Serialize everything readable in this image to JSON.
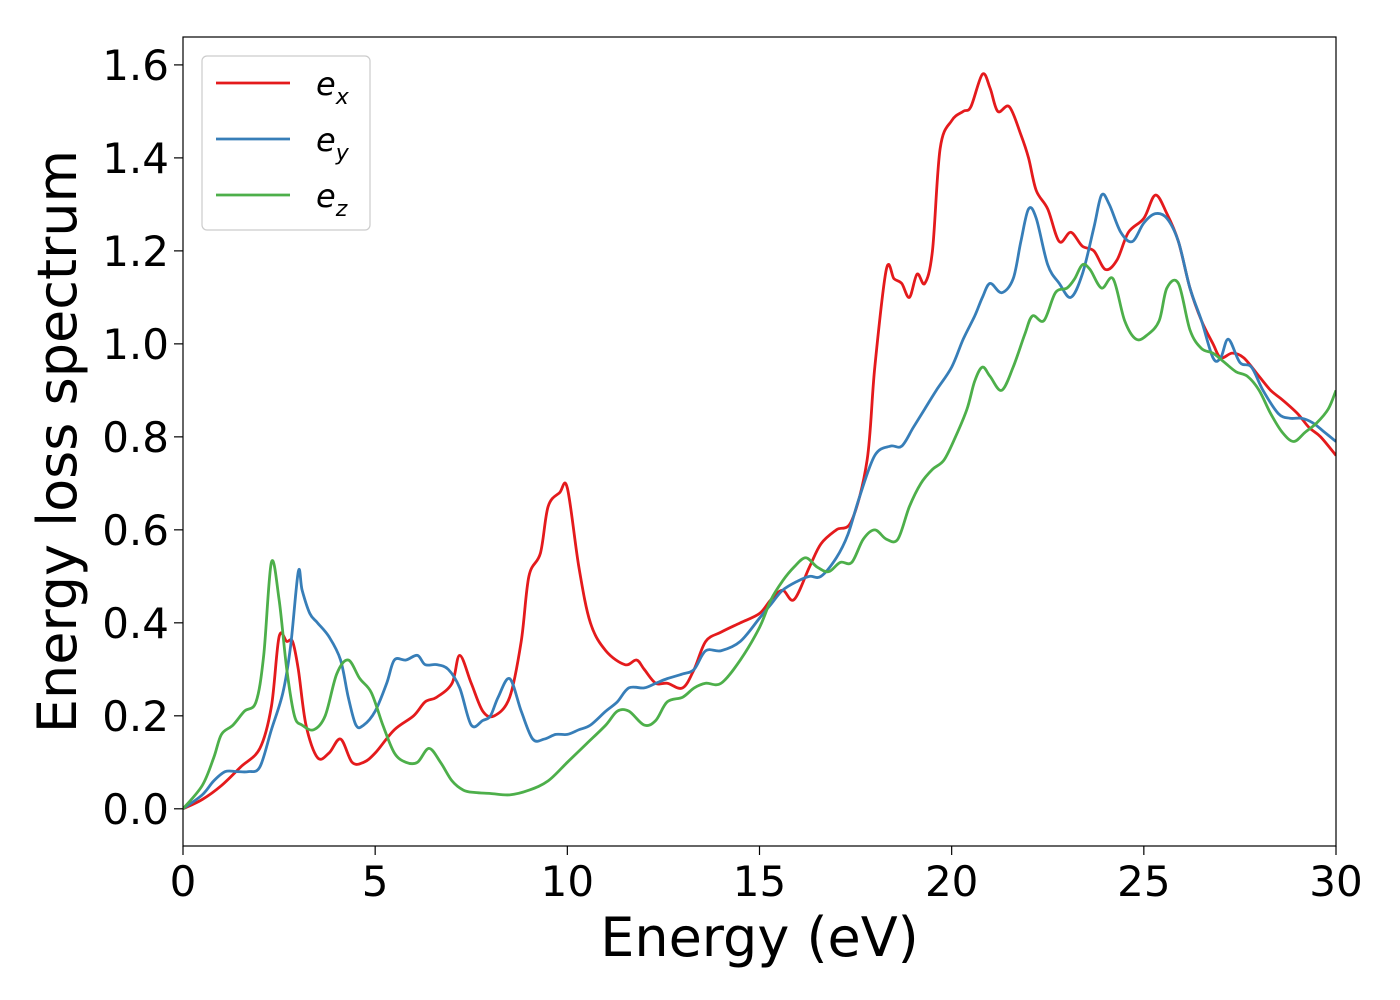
{
  "chart_data": {
    "type": "line",
    "xlabel": "Energy (eV)",
    "ylabel": "Energy loss spectrum",
    "xlim": [
      0,
      30
    ],
    "ylim": [
      -0.08,
      1.66
    ],
    "xticks": [
      0,
      5,
      10,
      15,
      20,
      25,
      30
    ],
    "xtick_labels": [
      "0",
      "5",
      "10",
      "15",
      "20",
      "25",
      "30"
    ],
    "yticks": [
      0.0,
      0.2,
      0.4,
      0.6,
      0.8,
      1.0,
      1.2,
      1.4,
      1.6
    ],
    "ytick_labels": [
      "0.0",
      "0.2",
      "0.4",
      "0.6",
      "0.8",
      "1.0",
      "1.2",
      "1.4",
      "1.6"
    ],
    "grid": false,
    "legend_position": "top-left",
    "series": [
      {
        "name": "e_x",
        "legend_base": "e",
        "legend_sub": "x",
        "color": "#e41a1c",
        "x": [
          0,
          0.5,
          1.0,
          1.5,
          2.0,
          2.3,
          2.5,
          2.7,
          2.85,
          3.0,
          3.2,
          3.5,
          3.8,
          4.1,
          4.4,
          4.7,
          5.0,
          5.5,
          6.0,
          6.3,
          6.6,
          7.0,
          7.2,
          7.5,
          7.8,
          8.1,
          8.5,
          8.8,
          9.0,
          9.3,
          9.5,
          9.8,
          10.0,
          10.3,
          10.6,
          11.0,
          11.5,
          11.8,
          12.0,
          12.3,
          12.6,
          13.0,
          13.3,
          13.6,
          14.0,
          14.5,
          15.0,
          15.3,
          15.6,
          15.9,
          16.3,
          16.6,
          17.0,
          17.4,
          17.8,
          18.0,
          18.3,
          18.5,
          18.7,
          18.9,
          19.1,
          19.3,
          19.5,
          19.7,
          20.0,
          20.3,
          20.5,
          20.8,
          21.0,
          21.2,
          21.5,
          21.8,
          22.0,
          22.2,
          22.5,
          22.8,
          23.1,
          23.4,
          23.7,
          24.0,
          24.3,
          24.6,
          25.0,
          25.3,
          25.6,
          25.9,
          26.2,
          26.5,
          26.8,
          27.0,
          27.3,
          27.6,
          28.0,
          28.3,
          28.6,
          29.0,
          29.3,
          29.6,
          30.0
        ],
        "y": [
          0.0,
          0.02,
          0.05,
          0.09,
          0.13,
          0.22,
          0.37,
          0.36,
          0.36,
          0.3,
          0.18,
          0.11,
          0.12,
          0.15,
          0.1,
          0.1,
          0.12,
          0.17,
          0.2,
          0.23,
          0.24,
          0.27,
          0.33,
          0.27,
          0.21,
          0.2,
          0.24,
          0.36,
          0.5,
          0.55,
          0.65,
          0.68,
          0.69,
          0.52,
          0.4,
          0.34,
          0.31,
          0.32,
          0.3,
          0.27,
          0.27,
          0.26,
          0.3,
          0.36,
          0.38,
          0.4,
          0.42,
          0.45,
          0.47,
          0.45,
          0.52,
          0.57,
          0.6,
          0.62,
          0.75,
          0.95,
          1.16,
          1.14,
          1.13,
          1.1,
          1.15,
          1.13,
          1.2,
          1.42,
          1.48,
          1.5,
          1.51,
          1.58,
          1.55,
          1.5,
          1.51,
          1.45,
          1.4,
          1.33,
          1.29,
          1.22,
          1.24,
          1.21,
          1.2,
          1.16,
          1.18,
          1.24,
          1.27,
          1.32,
          1.28,
          1.22,
          1.12,
          1.05,
          1.0,
          0.97,
          0.98,
          0.97,
          0.93,
          0.9,
          0.88,
          0.85,
          0.82,
          0.8,
          0.76
        ]
      },
      {
        "name": "e_y",
        "legend_base": "e",
        "legend_sub": "y",
        "color": "#377eb8",
        "x": [
          0,
          0.5,
          0.8,
          1.1,
          1.4,
          1.7,
          2.0,
          2.3,
          2.6,
          2.8,
          3.0,
          3.1,
          3.3,
          3.5,
          3.8,
          4.1,
          4.3,
          4.5,
          4.7,
          5.0,
          5.3,
          5.5,
          5.8,
          6.1,
          6.3,
          6.6,
          6.9,
          7.2,
          7.5,
          7.8,
          8.0,
          8.2,
          8.5,
          8.8,
          9.1,
          9.4,
          9.7,
          10.0,
          10.3,
          10.6,
          11.0,
          11.3,
          11.6,
          12.0,
          12.3,
          12.6,
          13.0,
          13.3,
          13.6,
          14.0,
          14.5,
          15.0,
          15.3,
          15.6,
          16.0,
          16.3,
          16.6,
          17.0,
          17.3,
          17.6,
          18.0,
          18.4,
          18.7,
          19.0,
          19.3,
          19.6,
          20.0,
          20.3,
          20.6,
          20.8,
          21.0,
          21.3,
          21.6,
          21.8,
          22.0,
          22.2,
          22.5,
          22.8,
          23.1,
          23.4,
          23.7,
          23.9,
          24.1,
          24.4,
          24.7,
          25.0,
          25.3,
          25.6,
          25.9,
          26.2,
          26.5,
          26.8,
          27.0,
          27.2,
          27.5,
          27.8,
          28.1,
          28.5,
          28.8,
          29.1,
          29.4,
          29.7,
          30.0
        ],
        "y": [
          0.0,
          0.03,
          0.06,
          0.08,
          0.08,
          0.08,
          0.09,
          0.17,
          0.25,
          0.35,
          0.51,
          0.47,
          0.42,
          0.4,
          0.37,
          0.32,
          0.24,
          0.18,
          0.18,
          0.21,
          0.27,
          0.32,
          0.32,
          0.33,
          0.31,
          0.31,
          0.3,
          0.26,
          0.18,
          0.19,
          0.2,
          0.24,
          0.28,
          0.21,
          0.15,
          0.15,
          0.16,
          0.16,
          0.17,
          0.18,
          0.21,
          0.23,
          0.26,
          0.26,
          0.27,
          0.28,
          0.29,
          0.3,
          0.34,
          0.34,
          0.36,
          0.41,
          0.44,
          0.47,
          0.49,
          0.5,
          0.5,
          0.54,
          0.59,
          0.67,
          0.76,
          0.78,
          0.78,
          0.82,
          0.86,
          0.9,
          0.95,
          1.01,
          1.06,
          1.1,
          1.13,
          1.11,
          1.14,
          1.22,
          1.29,
          1.27,
          1.17,
          1.13,
          1.1,
          1.15,
          1.25,
          1.32,
          1.3,
          1.24,
          1.22,
          1.26,
          1.28,
          1.27,
          1.22,
          1.12,
          1.05,
          0.97,
          0.97,
          1.01,
          0.96,
          0.95,
          0.9,
          0.85,
          0.84,
          0.84,
          0.83,
          0.81,
          0.79
        ]
      },
      {
        "name": "e_z",
        "legend_base": "e",
        "legend_sub": "z",
        "color": "#4daf4a",
        "x": [
          0,
          0.5,
          0.8,
          1.0,
          1.3,
          1.6,
          1.9,
          2.1,
          2.3,
          2.5,
          2.7,
          2.9,
          3.1,
          3.4,
          3.7,
          4.0,
          4.3,
          4.6,
          4.9,
          5.2,
          5.5,
          5.8,
          6.1,
          6.4,
          6.7,
          7.0,
          7.3,
          7.6,
          8.0,
          8.5,
          9.0,
          9.5,
          10.0,
          10.5,
          11.0,
          11.3,
          11.6,
          12.0,
          12.3,
          12.6,
          13.0,
          13.3,
          13.6,
          14.0,
          14.5,
          15.0,
          15.3,
          15.6,
          15.9,
          16.2,
          16.5,
          16.8,
          17.1,
          17.4,
          17.7,
          18.0,
          18.3,
          18.6,
          18.9,
          19.2,
          19.5,
          19.8,
          20.1,
          20.4,
          20.6,
          20.8,
          21.0,
          21.3,
          21.6,
          21.9,
          22.1,
          22.4,
          22.7,
          23.0,
          23.2,
          23.4,
          23.6,
          23.9,
          24.2,
          24.5,
          24.8,
          25.1,
          25.4,
          25.6,
          25.9,
          26.2,
          26.5,
          26.8,
          27.1,
          27.4,
          27.7,
          28.0,
          28.3,
          28.6,
          28.9,
          29.2,
          29.5,
          29.8,
          30.0
        ],
        "y": [
          0.0,
          0.05,
          0.11,
          0.16,
          0.18,
          0.21,
          0.23,
          0.33,
          0.53,
          0.45,
          0.3,
          0.2,
          0.18,
          0.17,
          0.2,
          0.29,
          0.32,
          0.28,
          0.25,
          0.18,
          0.12,
          0.1,
          0.1,
          0.13,
          0.1,
          0.06,
          0.04,
          0.035,
          0.033,
          0.03,
          0.04,
          0.06,
          0.1,
          0.14,
          0.18,
          0.21,
          0.21,
          0.18,
          0.19,
          0.23,
          0.24,
          0.26,
          0.27,
          0.27,
          0.32,
          0.39,
          0.45,
          0.49,
          0.52,
          0.54,
          0.52,
          0.51,
          0.53,
          0.53,
          0.58,
          0.6,
          0.58,
          0.58,
          0.65,
          0.7,
          0.73,
          0.75,
          0.8,
          0.86,
          0.92,
          0.95,
          0.93,
          0.9,
          0.95,
          1.02,
          1.06,
          1.05,
          1.11,
          1.12,
          1.14,
          1.17,
          1.16,
          1.12,
          1.14,
          1.05,
          1.01,
          1.02,
          1.05,
          1.12,
          1.13,
          1.03,
          0.99,
          0.98,
          0.96,
          0.94,
          0.93,
          0.9,
          0.85,
          0.81,
          0.79,
          0.81,
          0.83,
          0.86,
          0.9
        ]
      }
    ]
  }
}
